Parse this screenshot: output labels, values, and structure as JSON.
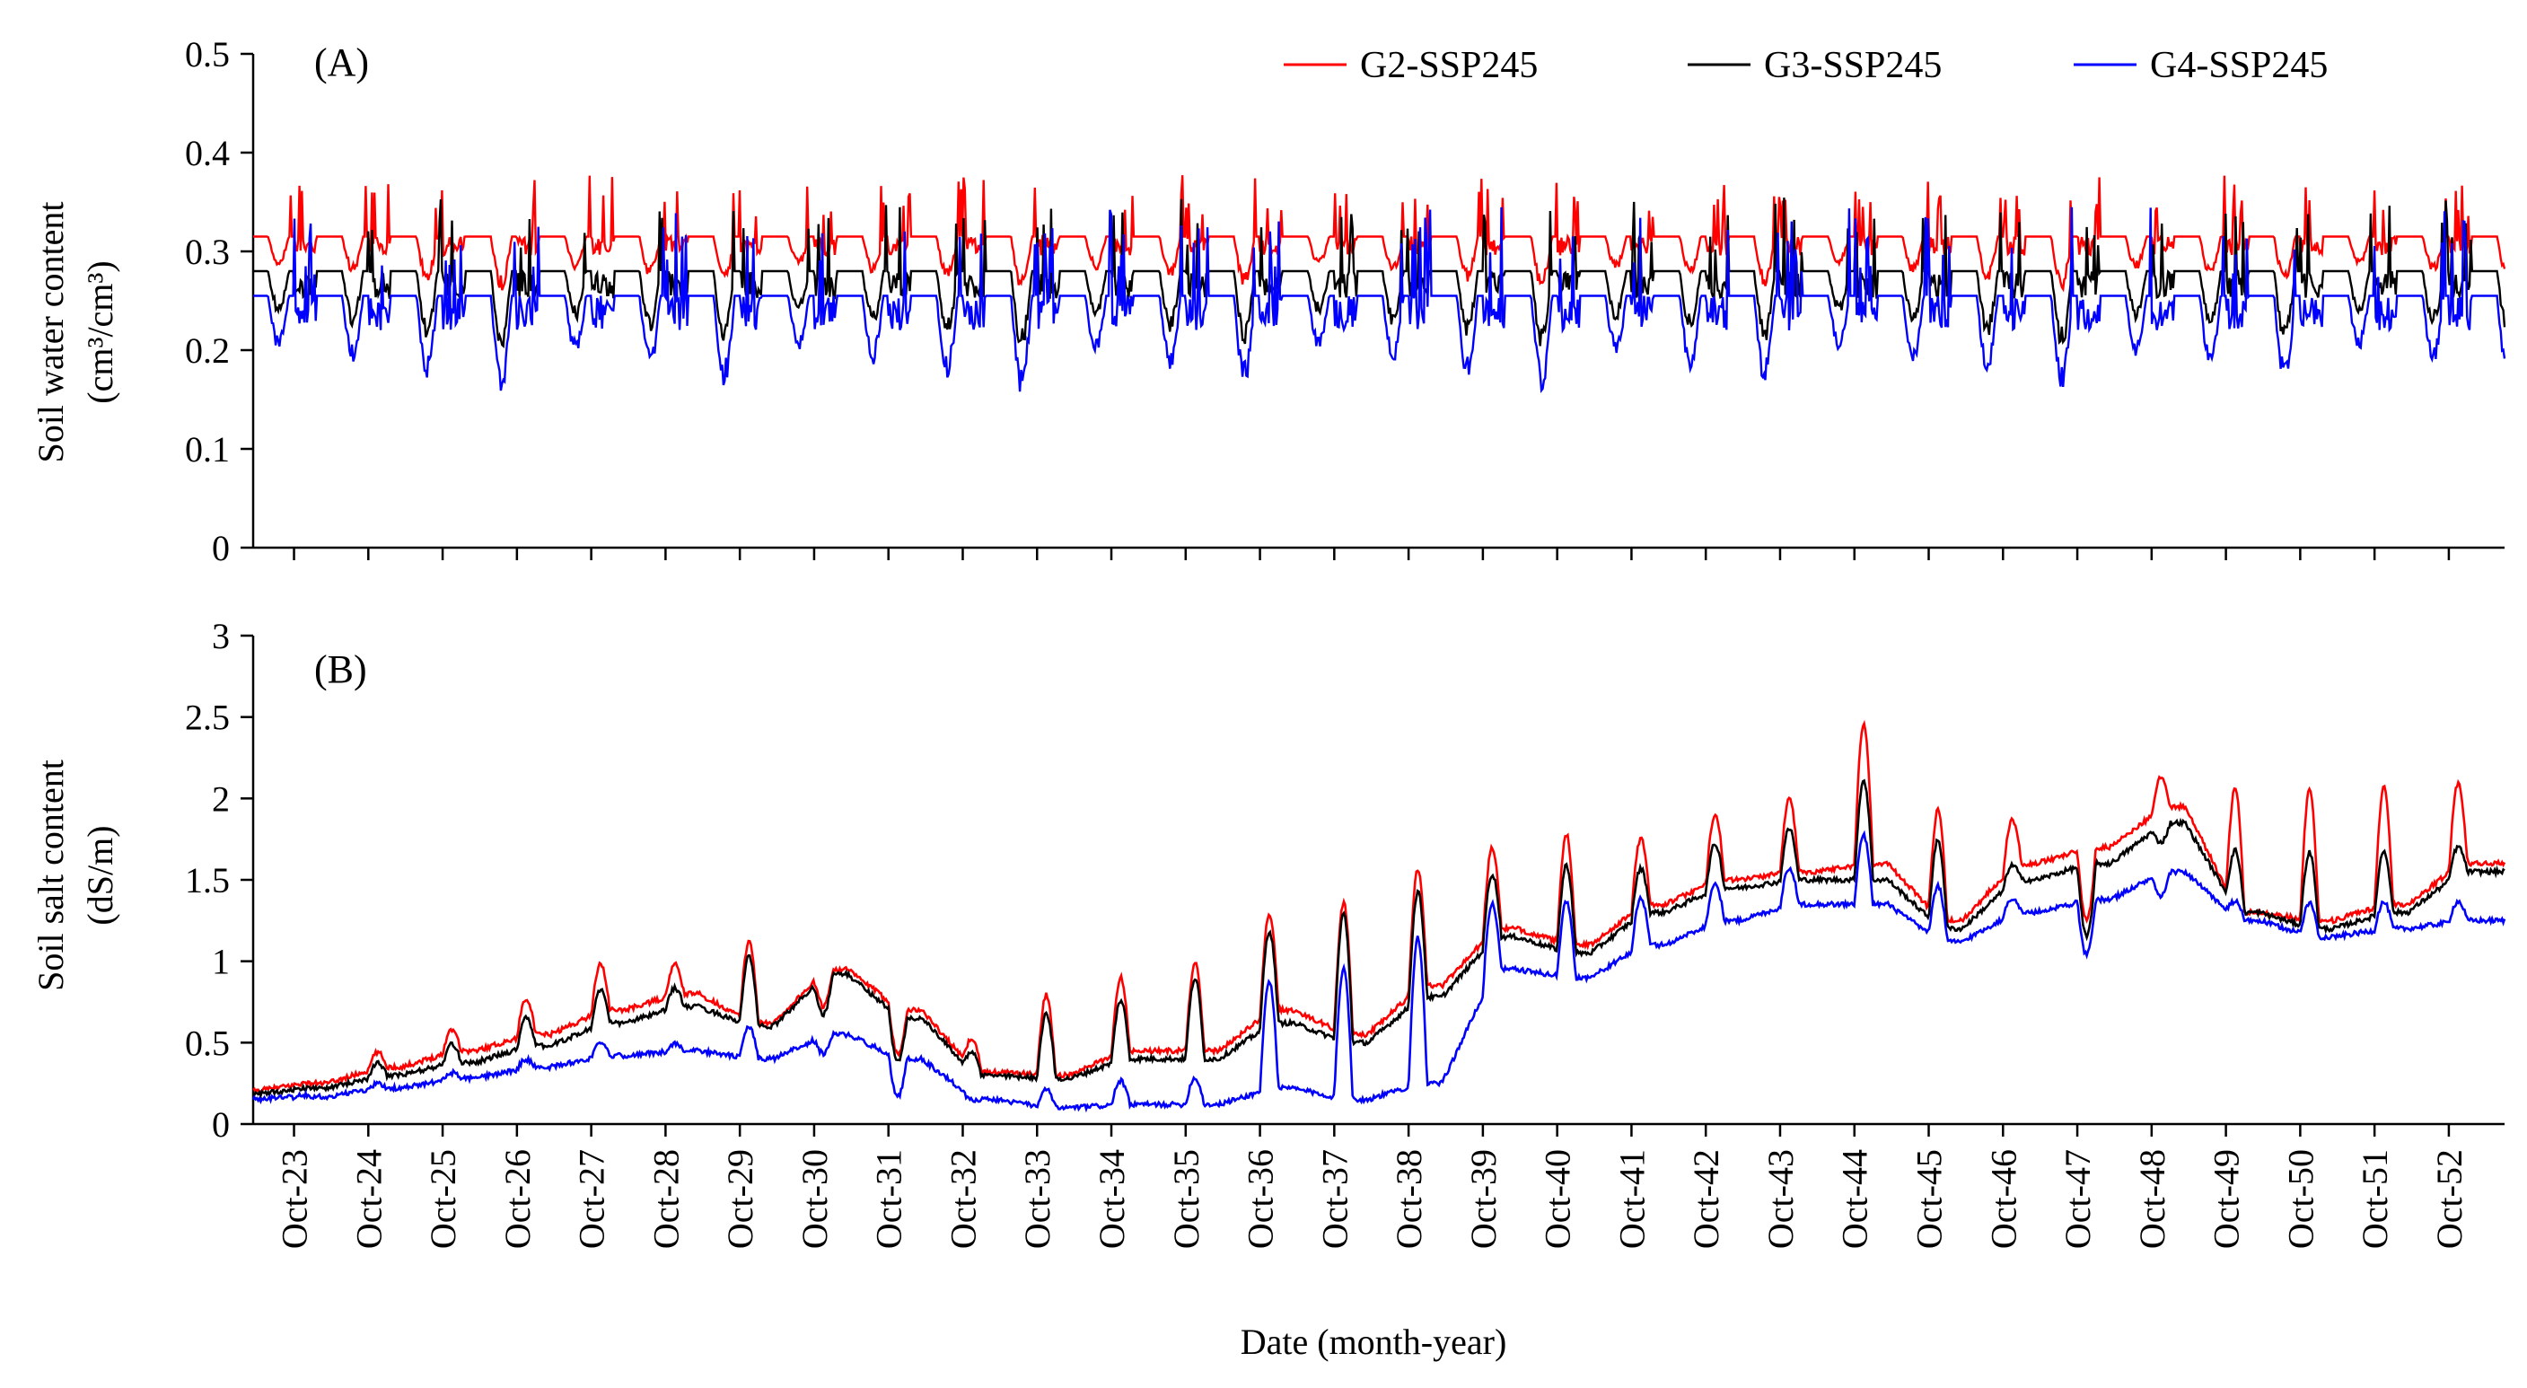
{
  "chart_data": [
    {
      "panel": "(A)",
      "type": "line",
      "ylabel": "Soil water content",
      "yunit": "(cm³/cm³)",
      "ylim": [
        0,
        0.5
      ],
      "yticks": [
        "0",
        "0.1",
        "0.2",
        "0.3",
        "0.4",
        "0.5"
      ],
      "legend": {
        "placement": "top-right",
        "entries": [
          "G2-SSP245",
          "G3-SSP245",
          "G4-SSP245"
        ]
      },
      "series": [
        {
          "name": "G2-SSP245",
          "color": "#ff0000",
          "baseline": 0.315,
          "wet_peak": 0.38,
          "dry_min": 0.26
        },
        {
          "name": "G3-SSP245",
          "color": "#000000",
          "baseline": 0.28,
          "wet_peak": 0.36,
          "dry_min": 0.2
        },
        {
          "name": "G4-SSP245",
          "color": "#0000ff",
          "baseline": 0.255,
          "wet_peak": 0.35,
          "dry_min": 0.155
        }
      ]
    },
    {
      "panel": "(B)",
      "type": "line",
      "ylabel": "Soil salt content",
      "yunit": "(dS/m)",
      "ylim": [
        0,
        3
      ],
      "yticks": [
        "0",
        "0.5",
        "1",
        "1.5",
        "2",
        "2.5",
        "3"
      ],
      "series": [
        {
          "name": "G2-SSP245",
          "color": "#ff0000",
          "x": [
            0,
            1,
            2,
            3,
            4,
            5,
            6,
            7,
            8,
            9,
            10,
            11,
            12,
            13,
            14,
            15,
            16,
            17,
            18,
            19,
            20,
            21,
            22,
            23,
            24,
            25,
            26,
            27,
            28,
            29,
            30
          ],
          "values": [
            0.2,
            0.25,
            0.35,
            0.45,
            0.55,
            0.7,
            0.8,
            0.62,
            0.95,
            0.7,
            0.32,
            0.3,
            0.45,
            0.45,
            0.7,
            0.55,
            0.85,
            1.2,
            1.1,
            1.35,
            1.5,
            1.55,
            1.6,
            1.25,
            1.6,
            1.7,
            1.95,
            1.3,
            1.25,
            1.35,
            1.6
          ],
          "peaks": [
            0.25,
            0.45,
            0.6,
            0.8,
            1.02,
            1.0,
            1.18,
            0.7,
            0.4,
            0.55,
            0.85,
            0.95,
            1.05,
            1.35,
            1.45,
            1.65,
            1.75,
            1.85,
            1.8,
            1.95,
            2.05,
            2.55,
            2.0,
            1.9,
            1.2,
            2.15
          ]
        },
        {
          "name": "G3-SSP245",
          "color": "#000000",
          "x": [
            0,
            1,
            2,
            3,
            4,
            5,
            6,
            7,
            8,
            9,
            10,
            11,
            12,
            13,
            14,
            15,
            16,
            17,
            18,
            19,
            20,
            21,
            22,
            23,
            24,
            25,
            26,
            27,
            28,
            29,
            30
          ],
          "values": [
            0.18,
            0.22,
            0.3,
            0.38,
            0.48,
            0.62,
            0.72,
            0.6,
            0.92,
            0.65,
            0.3,
            0.28,
            0.4,
            0.4,
            0.62,
            0.5,
            0.78,
            1.15,
            1.05,
            1.3,
            1.45,
            1.5,
            1.5,
            1.2,
            1.5,
            1.6,
            1.85,
            1.3,
            1.2,
            1.3,
            1.55
          ],
          "peaks": [
            0.22,
            0.38,
            0.5,
            0.68,
            0.85,
            0.85,
            1.08,
            0.65,
            0.35,
            0.45,
            0.72,
            0.8,
            0.95,
            1.25,
            1.38,
            1.5,
            1.58,
            1.65,
            1.6,
            1.75,
            1.85,
            2.18,
            1.8,
            1.6,
            1.1,
            1.72
          ]
        },
        {
          "name": "G4-SSP245",
          "color": "#0000ff",
          "x": [
            0,
            1,
            2,
            3,
            4,
            5,
            6,
            7,
            8,
            9,
            10,
            11,
            12,
            13,
            14,
            15,
            16,
            17,
            18,
            19,
            20,
            21,
            22,
            23,
            24,
            25,
            26,
            27,
            28,
            29,
            30
          ],
          "values": [
            0.15,
            0.17,
            0.22,
            0.28,
            0.35,
            0.42,
            0.45,
            0.4,
            0.55,
            0.4,
            0.15,
            0.1,
            0.12,
            0.12,
            0.22,
            0.15,
            0.25,
            0.95,
            0.9,
            1.1,
            1.25,
            1.35,
            1.35,
            1.12,
            1.3,
            1.38,
            1.55,
            1.25,
            1.15,
            1.2,
            1.25
          ],
          "peaks": [
            0.18,
            0.25,
            0.32,
            0.4,
            0.5,
            0.5,
            0.62,
            0.42,
            0.14,
            0.15,
            0.22,
            0.28,
            0.3,
            0.95,
            1.05,
            1.25,
            1.4,
            1.42,
            1.42,
            1.5,
            1.6,
            1.82,
            1.5,
            1.4,
            1.0,
            1.38
          ]
        }
      ]
    }
  ],
  "x_axis": {
    "label": "Date (month-year)",
    "ticks": [
      "Oct-23",
      "Oct-24",
      "Oct-25",
      "Oct-26",
      "Oct-27",
      "Oct-28",
      "Oct-29",
      "Oct-30",
      "Oct-31",
      "Oct-32",
      "Oct-33",
      "Oct-34",
      "Oct-35",
      "Oct-36",
      "Oct-37",
      "Oct-38",
      "Oct-39",
      "Oct-40",
      "Oct-41",
      "Oct-42",
      "Oct-43",
      "Oct-44",
      "Oct-45",
      "Oct-46",
      "Oct-47",
      "Oct-48",
      "Oct-49",
      "Oct-50",
      "Oct-51",
      "Oct-52"
    ],
    "range_years": [
      0,
      30.3
    ]
  }
}
